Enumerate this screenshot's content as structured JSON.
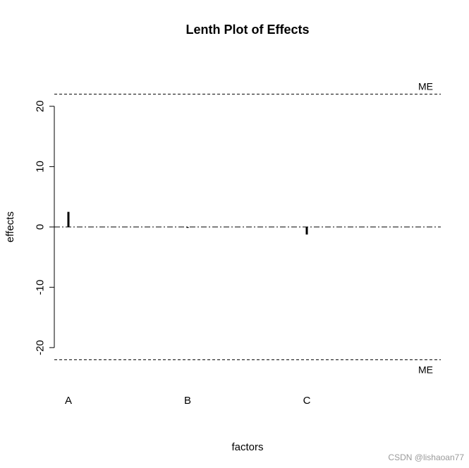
{
  "chart_data": {
    "type": "bar",
    "title": "Lenth Plot of Effects",
    "xlabel": "factors",
    "ylabel": "effects",
    "categories": [
      "A",
      "B",
      "C"
    ],
    "values": [
      2.5,
      -0.15,
      -1.25
    ],
    "ylim": [
      -22,
      22
    ],
    "yticks": [
      -20,
      -10,
      0,
      10,
      20
    ],
    "reference_lines": [
      {
        "label": "ME",
        "value": 22,
        "style": "dashed"
      },
      {
        "label": "ME",
        "value": -22,
        "style": "dashed"
      }
    ],
    "zero_line_style": "dot-dash",
    "grid": false
  },
  "watermark": "CSDN @lishaoan77"
}
